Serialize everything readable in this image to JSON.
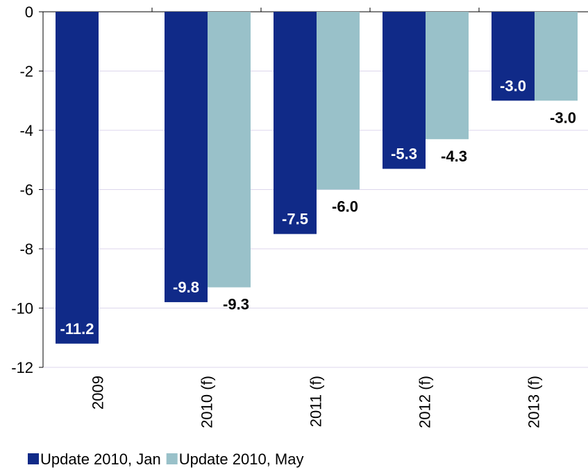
{
  "chart_data": {
    "type": "bar",
    "categories": [
      "2009",
      "2010 (f)",
      "2011 (f)",
      "2012 (f)",
      "2013 (f)"
    ],
    "series": [
      {
        "name": "Update 2010, Jan",
        "color": "#102a88",
        "values": [
          -11.2,
          -9.8,
          -7.5,
          -5.3,
          -3.0
        ],
        "value_labels": [
          "-11.2",
          "-9.8",
          "-7.5",
          "-5.3",
          "-3.0"
        ]
      },
      {
        "name": "Update 2010, May",
        "color": "#99c1c9",
        "values": [
          null,
          -9.3,
          -6.0,
          -4.3,
          -3.0
        ],
        "value_labels": [
          null,
          "-9.3",
          "-6.0",
          "-4.3",
          "-3.0"
        ]
      }
    ],
    "ylim": [
      -12,
      0
    ],
    "yticks": [
      0,
      -2,
      -4,
      -6,
      -8,
      -10,
      -12
    ],
    "grid": true,
    "legend": "bottom"
  }
}
